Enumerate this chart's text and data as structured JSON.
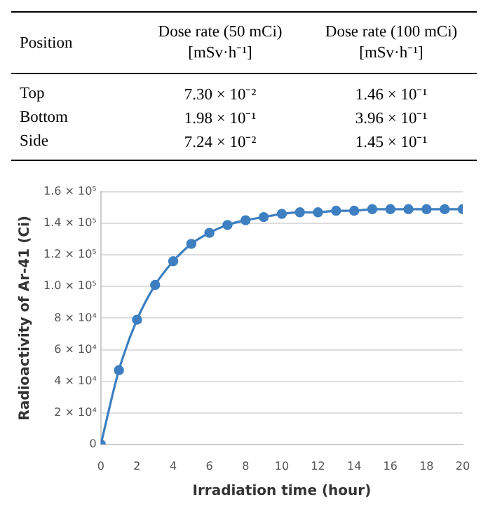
{
  "chart_data": [
    {
      "type": "other",
      "ylabel": "Position",
      "categories": [
        "Dose rate (50 mCi) [mSv·h⁻¹]",
        "Dose rate (100 mCi) [mSv·h⁻¹]"
      ],
      "y_categories": [
        "Top",
        "Bottom",
        "Side"
      ],
      "cell_labels": [
        [
          "7.30 × 10⁻²",
          "1.46 × 10⁻¹"
        ],
        [
          "1.98 × 10⁻¹",
          "3.96 × 10⁻¹"
        ],
        [
          "7.24 × 10⁻²",
          "1.45 × 10⁻¹"
        ]
      ]
    },
    {
      "type": "line",
      "xlabel": "Irradiation time (hour)",
      "ylabel": "Radioactivity of Ar-41 (Ci)",
      "x": [
        0,
        1,
        2,
        3,
        4,
        5,
        6,
        7,
        8,
        9,
        10,
        11,
        12,
        13,
        14,
        15,
        16,
        17,
        18,
        19,
        20
      ],
      "series": [
        {
          "color": "#3d7fc1",
          "values": [
            0,
            47000,
            79000,
            101000,
            116000,
            127000,
            134000,
            139000,
            142000,
            144000,
            146000,
            147000,
            147000,
            148000,
            148000,
            149000,
            149000,
            149000,
            149000,
            149000,
            149000
          ]
        }
      ],
      "xlim": [
        0,
        20
      ],
      "xticks": [
        0,
        2,
        4,
        6,
        8,
        10,
        12,
        14,
        16,
        18,
        20
      ],
      "ylim": [
        0,
        160000
      ],
      "yticks": [
        0,
        {
          "value": 20000,
          "label": "2 × 10⁴"
        },
        {
          "value": 40000,
          "label": "4 × 10⁴"
        },
        {
          "value": 60000,
          "label": "6 × 10⁴"
        },
        {
          "value": 80000,
          "label": "8 × 10⁴"
        },
        {
          "value": 100000,
          "label": "1.0 × 10⁵"
        },
        {
          "value": 120000,
          "label": "1.2 × 10⁵"
        },
        {
          "value": 140000,
          "label": "1.4 × 10⁵"
        },
        {
          "value": 160000,
          "label": "1.6 × 10⁵"
        }
      ],
      "grid": "y",
      "marker": "circle",
      "line_style": "solid",
      "legend": false
    }
  ]
}
